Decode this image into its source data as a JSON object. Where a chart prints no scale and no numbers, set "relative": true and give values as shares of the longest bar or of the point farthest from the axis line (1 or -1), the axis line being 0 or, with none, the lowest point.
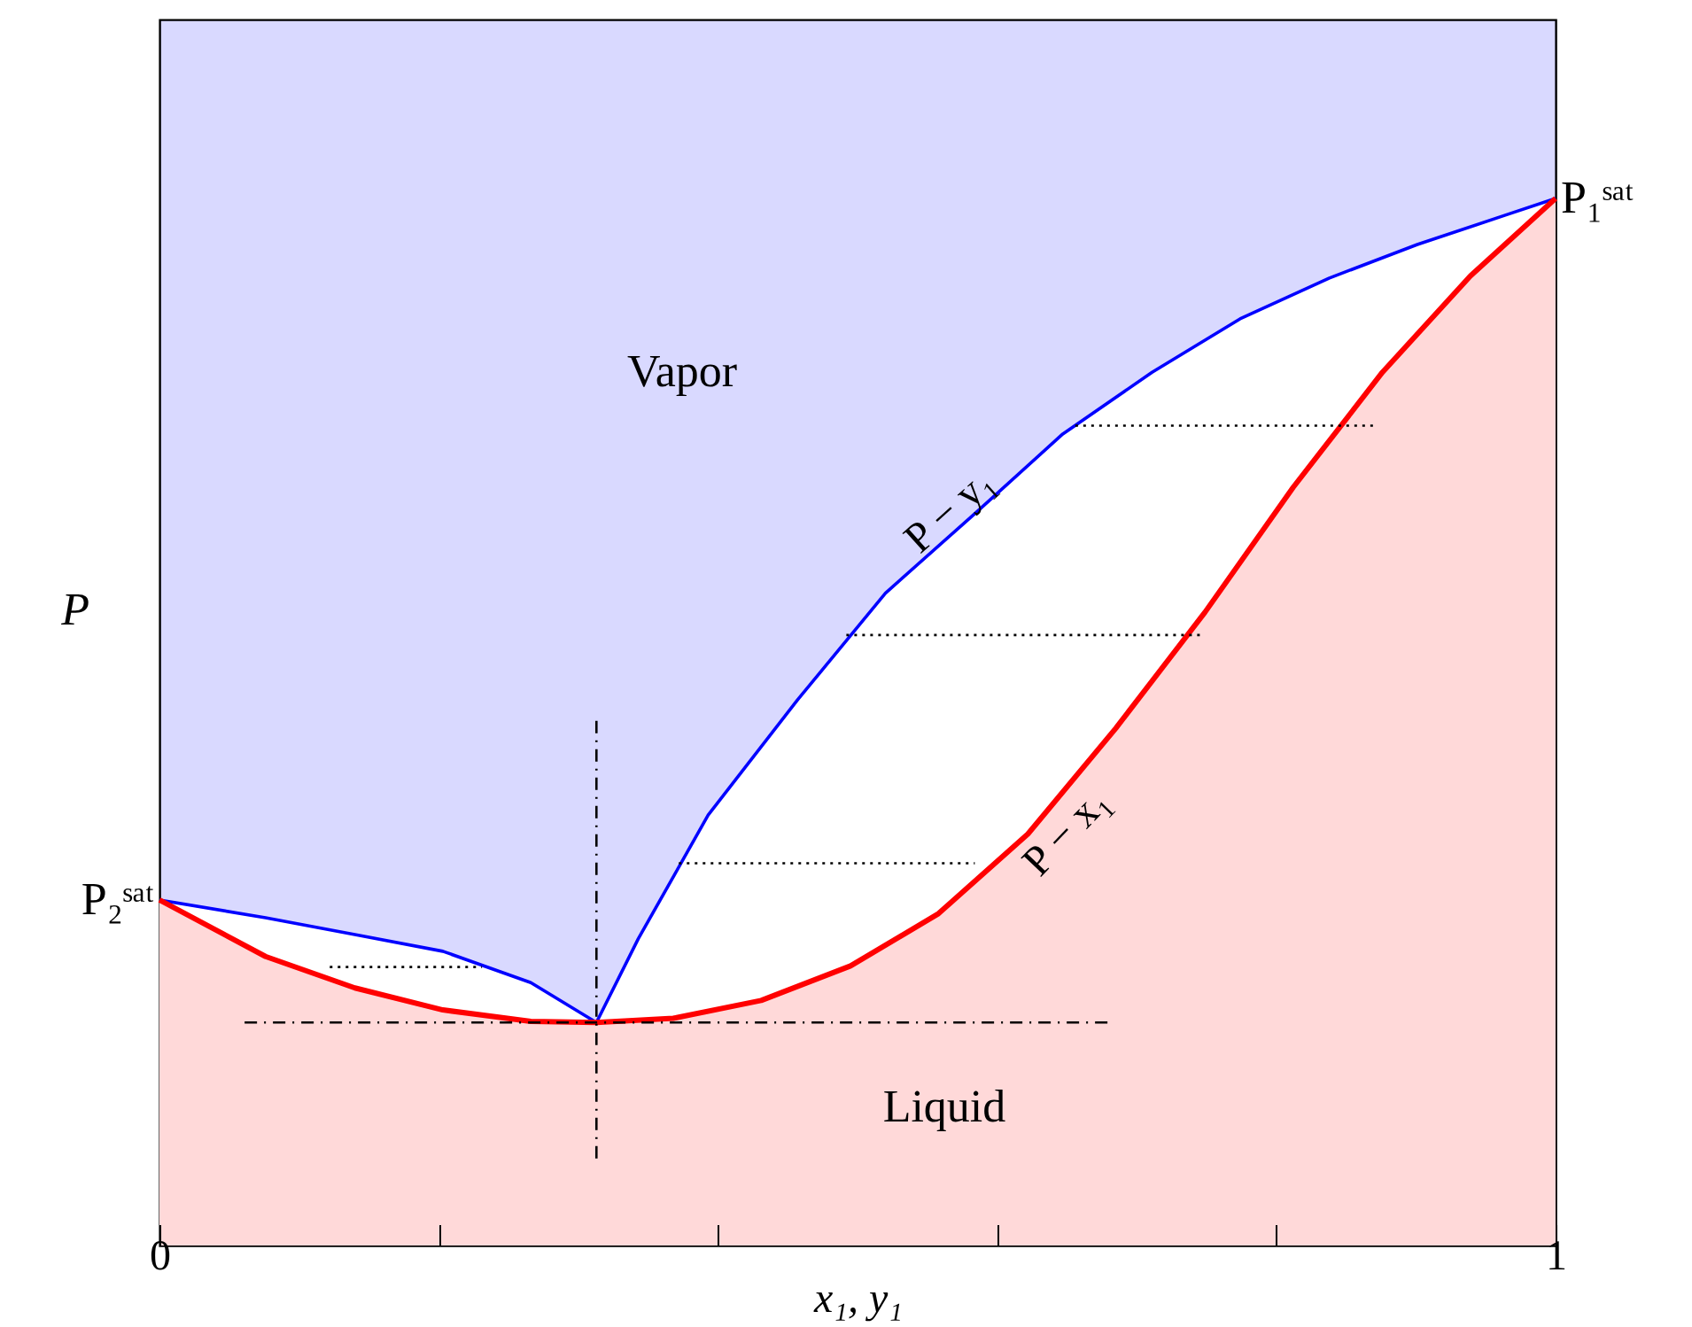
{
  "chart_data": {
    "type": "line",
    "relative": true,
    "xlabel": "x₁, y₁",
    "ylabel": "P",
    "xlim": [
      0,
      1
    ],
    "xticks": [
      0,
      {
        "value": 0.2,
        "label": null
      },
      {
        "value": 0.4,
        "label": null
      },
      {
        "value": 0.6,
        "label": null
      },
      {
        "value": 0.8,
        "label": null
      },
      1
    ],
    "series": [
      {
        "name": "P − y₁",
        "color": "#0000ff",
        "x": [
          0,
          0.076,
          0.14,
          0.203,
          0.266,
          0.313,
          0.343,
          0.393,
          0.457,
          0.52,
          0.584,
          0.647,
          0.711,
          0.774,
          0.838,
          0.901,
          0.964,
          1
        ],
        "values": [
          0.33,
          0.313,
          0.297,
          0.281,
          0.251,
          0.213,
          0.293,
          0.411,
          0.521,
          0.623,
          0.699,
          0.775,
          0.834,
          0.885,
          0.924,
          0.956,
          0.984,
          1
        ]
      },
      {
        "name": "P − x₁",
        "type": "area",
        "color": "#ff0000",
        "x": [
          0,
          0.076,
          0.14,
          0.203,
          0.266,
          0.313,
          0.368,
          0.431,
          0.495,
          0.558,
          0.622,
          0.685,
          0.749,
          0.812,
          0.876,
          0.939,
          1
        ],
        "values": [
          0.33,
          0.276,
          0.246,
          0.225,
          0.214,
          0.213,
          0.217,
          0.234,
          0.267,
          0.317,
          0.393,
          0.494,
          0.605,
          0.724,
          0.834,
          0.926,
          1
        ]
      },
      {
        "color": "#000000",
        "line_style": "dotted",
        "x": [
          0.656,
          0.873
        ],
        "values": [
          0.783,
          0.783
        ]
      },
      {
        "color": "#000000",
        "line_style": "dotted",
        "x": [
          0.492,
          0.746
        ],
        "values": [
          0.583,
          0.583
        ]
      },
      {
        "color": "#000000",
        "line_style": "dotted",
        "x": [
          0.372,
          0.584
        ],
        "values": [
          0.365,
          0.365
        ]
      },
      {
        "color": "#000000",
        "line_style": "dotted",
        "x": [
          0.122,
          0.231
        ],
        "values": [
          0.266,
          0.266
        ]
      },
      {
        "color": "#000000",
        "line_style": "dashed",
        "x": [
          0.061,
          0.683
        ],
        "values": [
          0.213,
          0.213
        ]
      },
      {
        "color": "#000000",
        "line_style": "dashed",
        "x": [
          0.313,
          0.313
        ],
        "values": [
          0.501,
          0.078
        ]
      }
    ],
    "annotations": [
      "Vapor",
      "Liquid",
      {
        "text": "P₂ˢᵃᵗ",
        "x": 0,
        "y": 0.33
      },
      {
        "text": "P₁ˢᵃᵗ",
        "x": 1,
        "y": 1
      }
    ]
  }
}
